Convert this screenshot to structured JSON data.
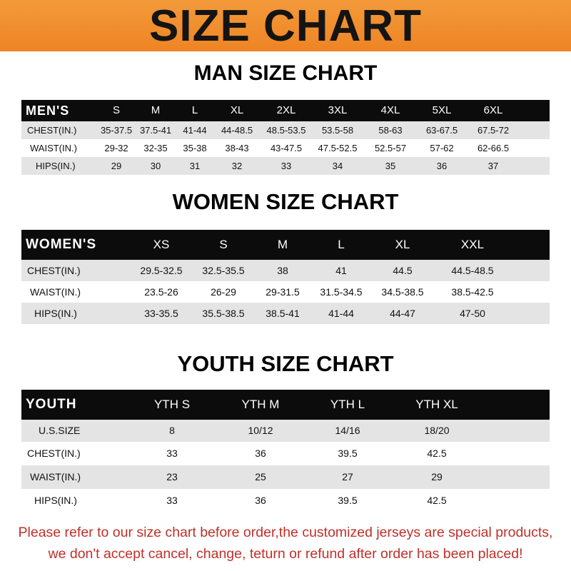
{
  "banner": {
    "title": "SIZE CHART",
    "color": "#f08c2c"
  },
  "men": {
    "heading": "MAN SIZE CHART",
    "header": [
      "MEN'S",
      "S",
      "M",
      "L",
      "XL",
      "2XL",
      "3XL",
      "4XL",
      "5XL",
      "6XL"
    ],
    "rows": [
      [
        "CHEST(IN.)",
        "35-37.5",
        "37.5-41",
        "41-44",
        "44-48.5",
        "48.5-53.5",
        "53.5-58",
        "58-63",
        "63-67.5",
        "67.5-72"
      ],
      [
        "WAIST(IN.)",
        "29-32",
        "32-35",
        "35-38",
        "38-43",
        "43-47.5",
        "47.5-52.5",
        "52.5-57",
        "57-62",
        "62-66.5"
      ],
      [
        "HIPS(IN.)",
        "29",
        "30",
        "31",
        "32",
        "33",
        "34",
        "35",
        "36",
        "37"
      ]
    ]
  },
  "women": {
    "heading": "WOMEN SIZE CHART",
    "header": [
      "WOMEN'S",
      "XS",
      "S",
      "M",
      "L",
      "XL",
      "XXL"
    ],
    "rows": [
      [
        "CHEST(IN.)",
        "29.5-32.5",
        "32.5-35.5",
        "38",
        "41",
        "44.5",
        "44.5-48.5"
      ],
      [
        "WAIST(IN.)",
        "23.5-26",
        "26-29",
        "29-31.5",
        "31.5-34.5",
        "34.5-38.5",
        "38.5-42.5"
      ],
      [
        "HIPS(IN.)",
        "33-35.5",
        "35.5-38.5",
        "38.5-41",
        "41-44",
        "44-47",
        "47-50"
      ]
    ]
  },
  "youth": {
    "heading": "YOUTH SIZE CHART",
    "header": [
      "YOUTH",
      "YTH S",
      "YTH M",
      "YTH L",
      "YTH XL"
    ],
    "rows": [
      [
        "U.S.SIZE",
        "8",
        "10/12",
        "14/16",
        "18/20"
      ],
      [
        "CHEST(IN.)",
        "33",
        "36",
        "39.5",
        "42.5"
      ],
      [
        "WAIST(IN.)",
        "23",
        "25",
        "27",
        "29"
      ],
      [
        "HIPS(IN.)",
        "33",
        "36",
        "39.5",
        "42.5"
      ]
    ]
  },
  "footer": {
    "line1": "Please refer to our size chart before order,the customized jerseys are special products,",
    "line2": "we don't accept cancel, change, teturn or refund after order has been placed!",
    "color": "#c0302a"
  }
}
